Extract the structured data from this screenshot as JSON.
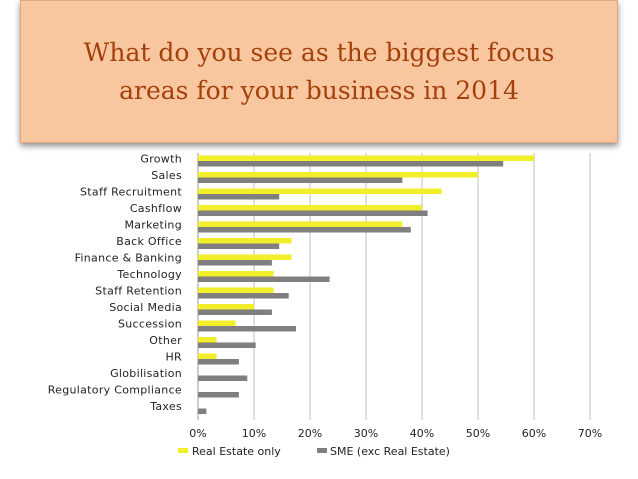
{
  "title": "What do you see as the biggest focus areas for your business in 2014",
  "colors": {
    "title_bg": "#f9c79f",
    "title_text": "#a3400c",
    "series_real_estate": "#f2ee2a",
    "series_sme": "#7f7f7f",
    "grid": "#bfbfbf"
  },
  "chart_data": {
    "type": "bar",
    "orientation": "horizontal",
    "categories": [
      "Growth",
      "Sales",
      "Staff Recruitment",
      "Cashflow",
      "Marketing",
      "Back Office",
      "Finance & Banking",
      "Technology",
      "Staff Retention",
      "Social Media",
      "Succession",
      "Other",
      "HR",
      "Globilisation",
      "Regulatory Compliance",
      "Taxes"
    ],
    "series": [
      {
        "name": "Real Estate only",
        "values": [
          60,
          50,
          43.5,
          40,
          36.5,
          16.7,
          16.7,
          13.5,
          13.5,
          10,
          6.7,
          3.3,
          3.3,
          0,
          0,
          0
        ]
      },
      {
        "name": "SME (exc Real Estate)",
        "values": [
          54.5,
          36.5,
          14.5,
          41,
          38,
          14.5,
          13.2,
          23.5,
          16.2,
          13.2,
          17.5,
          10.3,
          7.3,
          8.8,
          7.3,
          1.5
        ]
      }
    ],
    "xlim": [
      0,
      70
    ],
    "xticks": [
      "0%",
      "10%",
      "20%",
      "30%",
      "40%",
      "50%",
      "60%",
      "70%"
    ],
    "grid": true,
    "legend_position": "bottom"
  }
}
